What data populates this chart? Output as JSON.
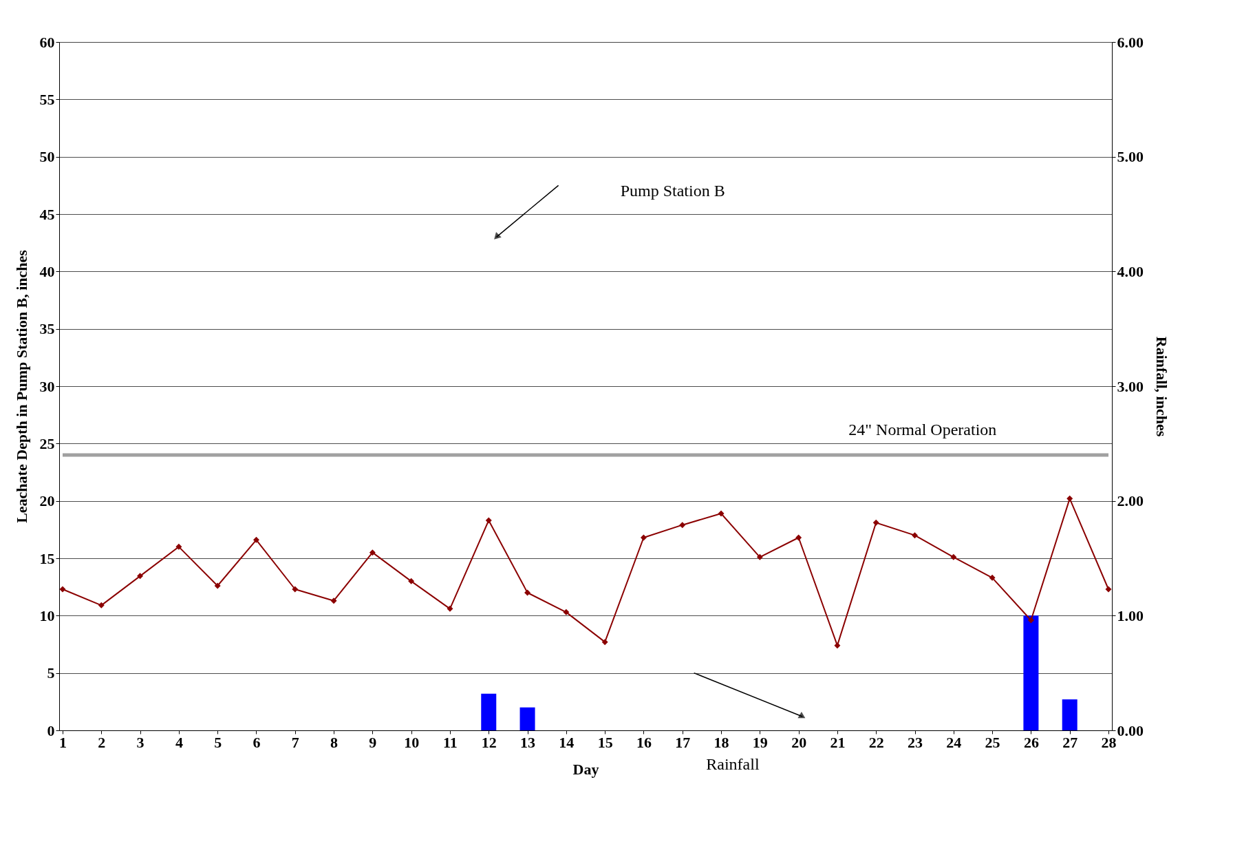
{
  "chart_data": {
    "type": "line",
    "xlabel": "Day",
    "ylabel": "Leachate Depth in Pump Station B, inches",
    "y2label": "Rainfall, inches",
    "x": [
      1,
      2,
      3,
      4,
      5,
      6,
      7,
      8,
      9,
      10,
      11,
      12,
      13,
      14,
      15,
      16,
      17,
      18,
      19,
      20,
      21,
      22,
      23,
      24,
      25,
      26,
      27,
      28
    ],
    "series": [
      {
        "type": "bar",
        "axis": "y2",
        "color": "#0000ff",
        "values": [
          null,
          null,
          null,
          null,
          null,
          null,
          null,
          null,
          null,
          null,
          null,
          0.32,
          0.2,
          null,
          null,
          null,
          null,
          null,
          null,
          null,
          null,
          null,
          null,
          null,
          null,
          1.0,
          0.27,
          null
        ]
      },
      {
        "color": "#8b0000",
        "marker": "diamond",
        "values": [
          12.3,
          10.9,
          13.45,
          16.0,
          12.6,
          16.6,
          12.3,
          11.3,
          15.5,
          13.0,
          10.6,
          18.3,
          12.0,
          10.3,
          7.7,
          16.8,
          17.9,
          18.9,
          15.1,
          16.8,
          7.4,
          18.1,
          17.0,
          15.1,
          13.3,
          9.6,
          20.2,
          12.3
        ]
      }
    ],
    "xlim": [
      1,
      28
    ],
    "xticks": [
      1,
      2,
      3,
      4,
      5,
      6,
      7,
      8,
      9,
      10,
      11,
      12,
      13,
      14,
      15,
      16,
      17,
      18,
      19,
      20,
      21,
      22,
      23,
      24,
      25,
      26,
      27,
      28
    ],
    "ylim": [
      0,
      60
    ],
    "yticks": [
      0,
      5,
      10,
      15,
      20,
      25,
      30,
      35,
      40,
      45,
      50,
      55,
      60
    ],
    "y2lim": [
      0,
      6
    ],
    "y2ticks": [
      {
        "value": 0,
        "label": "0.00"
      },
      {
        "value": 1,
        "label": "1.00"
      },
      {
        "value": 2,
        "label": "2.00"
      },
      {
        "value": 3,
        "label": "3.00"
      },
      {
        "value": 4,
        "label": "4.00"
      },
      {
        "value": 5,
        "label": "5.00"
      },
      {
        "value": 6,
        "label": "6.00"
      }
    ],
    "ref_lines": [
      {
        "axis": "y",
        "value": 24,
        "label": "24\" Normal Operation",
        "color": "#a0a0a0"
      }
    ],
    "annotations": [
      "Pump Station B",
      "Rainfall"
    ],
    "grid": "y"
  }
}
